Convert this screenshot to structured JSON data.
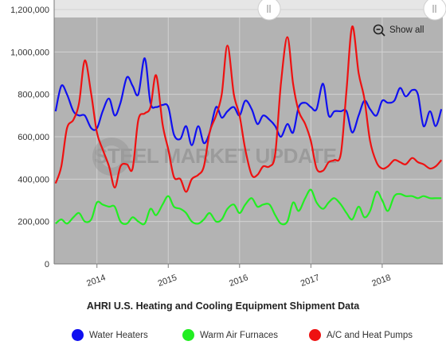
{
  "chart_data": {
    "type": "line",
    "title": "AHRI U.S. Heating and Cooling Equipment Shipment Data",
    "ylim": [
      0,
      1200000
    ],
    "yticks": [
      "0",
      "200,000",
      "400,000",
      "600,000",
      "800,000",
      "1,000,000",
      "1,200,000"
    ],
    "ytick_values": [
      0,
      200000,
      400000,
      600000,
      800000,
      1000000,
      1200000
    ],
    "xticks": [
      "2014",
      "2015",
      "2016",
      "2017",
      "2018"
    ],
    "xtick_values": [
      2014.0,
      2015.0,
      2016.0,
      2017.0,
      2018.0
    ],
    "xlim": [
      2013.4,
      2018.85
    ],
    "grid": true,
    "legend_position": "bottom",
    "series": [
      {
        "name": "Water Heaters",
        "color": "#1010f0",
        "x": [
          2013.42,
          2013.5,
          2013.58,
          2013.67,
          2013.75,
          2013.83,
          2013.92,
          2014.0,
          2014.08,
          2014.17,
          2014.25,
          2014.33,
          2014.42,
          2014.5,
          2014.58,
          2014.67,
          2014.75,
          2014.83,
          2014.92,
          2015.0,
          2015.08,
          2015.17,
          2015.25,
          2015.33,
          2015.42,
          2015.5,
          2015.58,
          2015.67,
          2015.75,
          2015.83,
          2015.92,
          2016.0,
          2016.08,
          2016.17,
          2016.25,
          2016.33,
          2016.42,
          2016.5,
          2016.58,
          2016.67,
          2016.75,
          2016.83,
          2016.92,
          2017.0,
          2017.08,
          2017.17,
          2017.25,
          2017.33,
          2017.42,
          2017.5,
          2017.58,
          2017.67,
          2017.75,
          2017.83,
          2017.92,
          2018.0,
          2018.08,
          2018.17,
          2018.25,
          2018.33,
          2018.42,
          2018.5,
          2018.58,
          2018.67,
          2018.75,
          2018.83
        ],
        "values": [
          720000,
          840000,
          800000,
          720000,
          700000,
          700000,
          640000,
          640000,
          720000,
          780000,
          700000,
          760000,
          880000,
          840000,
          800000,
          970000,
          760000,
          740000,
          750000,
          740000,
          610000,
          590000,
          650000,
          560000,
          650000,
          570000,
          620000,
          740000,
          690000,
          720000,
          740000,
          700000,
          770000,
          730000,
          660000,
          700000,
          680000,
          650000,
          600000,
          660000,
          620000,
          740000,
          760000,
          740000,
          730000,
          850000,
          700000,
          720000,
          720000,
          720000,
          620000,
          700000,
          770000,
          730000,
          700000,
          770000,
          760000,
          770000,
          830000,
          790000,
          820000,
          800000,
          650000,
          720000,
          650000,
          730000
        ]
      },
      {
        "name": "Warm Air Furnaces",
        "color": "#22ee22",
        "x": [
          2013.42,
          2013.5,
          2013.58,
          2013.67,
          2013.75,
          2013.83,
          2013.92,
          2014.0,
          2014.08,
          2014.17,
          2014.25,
          2014.33,
          2014.42,
          2014.5,
          2014.58,
          2014.67,
          2014.75,
          2014.83,
          2014.92,
          2015.0,
          2015.08,
          2015.17,
          2015.25,
          2015.33,
          2015.42,
          2015.5,
          2015.58,
          2015.67,
          2015.75,
          2015.83,
          2015.92,
          2016.0,
          2016.08,
          2016.17,
          2016.25,
          2016.33,
          2016.42,
          2016.5,
          2016.58,
          2016.67,
          2016.75,
          2016.83,
          2016.92,
          2017.0,
          2017.08,
          2017.17,
          2017.25,
          2017.33,
          2017.42,
          2017.5,
          2017.58,
          2017.67,
          2017.75,
          2017.83,
          2017.92,
          2018.0,
          2018.08,
          2018.17,
          2018.25,
          2018.33,
          2018.42,
          2018.5,
          2018.58,
          2018.67,
          2018.75,
          2018.83
        ],
        "values": [
          190000,
          210000,
          190000,
          220000,
          240000,
          200000,
          210000,
          290000,
          280000,
          270000,
          270000,
          200000,
          190000,
          220000,
          200000,
          190000,
          260000,
          230000,
          280000,
          320000,
          270000,
          260000,
          240000,
          200000,
          190000,
          210000,
          240000,
          200000,
          210000,
          260000,
          280000,
          240000,
          280000,
          310000,
          270000,
          280000,
          280000,
          230000,
          190000,
          200000,
          290000,
          250000,
          310000,
          350000,
          290000,
          260000,
          290000,
          310000,
          280000,
          240000,
          210000,
          270000,
          220000,
          250000,
          340000,
          300000,
          250000,
          320000,
          330000,
          320000,
          320000,
          310000,
          320000,
          310000,
          310000,
          310000
        ]
      },
      {
        "name": "A/C and Heat Pumps",
        "color": "#ee1111",
        "x": [
          2013.42,
          2013.5,
          2013.58,
          2013.67,
          2013.75,
          2013.83,
          2013.92,
          2014.0,
          2014.08,
          2014.17,
          2014.25,
          2014.33,
          2014.42,
          2014.5,
          2014.58,
          2014.67,
          2014.75,
          2014.83,
          2014.92,
          2015.0,
          2015.08,
          2015.17,
          2015.25,
          2015.33,
          2015.42,
          2015.5,
          2015.58,
          2015.67,
          2015.75,
          2015.83,
          2015.92,
          2016.0,
          2016.08,
          2016.17,
          2016.25,
          2016.33,
          2016.42,
          2016.5,
          2016.58,
          2016.67,
          2016.75,
          2016.83,
          2016.92,
          2017.0,
          2017.08,
          2017.17,
          2017.25,
          2017.33,
          2017.42,
          2017.5,
          2017.58,
          2017.67,
          2017.75,
          2017.83,
          2017.92,
          2018.0,
          2018.08,
          2018.17,
          2018.25,
          2018.33,
          2018.42,
          2018.5,
          2018.58,
          2018.67,
          2018.75,
          2018.83
        ],
        "values": [
          380000,
          460000,
          640000,
          680000,
          760000,
          960000,
          800000,
          620000,
          540000,
          460000,
          360000,
          460000,
          470000,
          450000,
          680000,
          710000,
          740000,
          890000,
          660000,
          540000,
          410000,
          400000,
          340000,
          400000,
          420000,
          460000,
          620000,
          700000,
          800000,
          1030000,
          800000,
          700000,
          540000,
          420000,
          420000,
          460000,
          460000,
          520000,
          850000,
          1070000,
          850000,
          720000,
          660000,
          580000,
          450000,
          440000,
          480000,
          490000,
          520000,
          820000,
          1120000,
          900000,
          780000,
          580000,
          480000,
          450000,
          460000,
          490000,
          480000,
          470000,
          500000,
          480000,
          470000,
          450000,
          460000,
          490000
        ]
      }
    ]
  },
  "ui": {
    "show_all_label": "Show all",
    "watermark": "STEEL MARKET UPDATE"
  },
  "colors": {
    "plot_background": "#b3b3b3",
    "navigator_background": "#e6e6e6",
    "axis": "#999999"
  }
}
